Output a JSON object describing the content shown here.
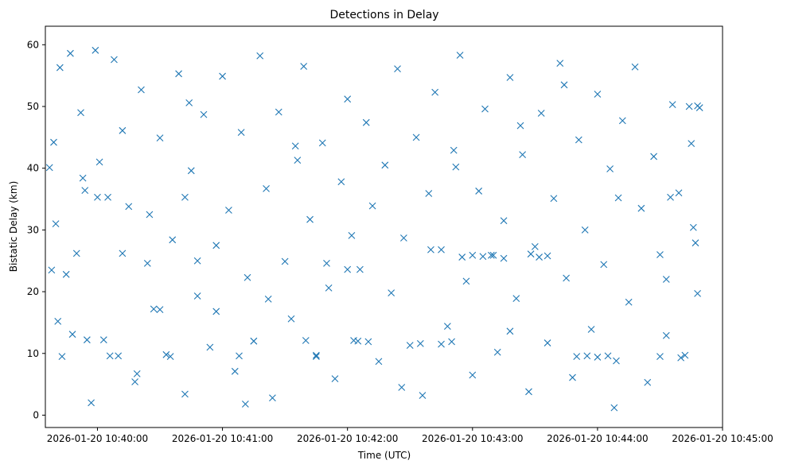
{
  "chart_data": {
    "type": "scatter",
    "title": "Detections in Delay",
    "xlabel": "Time (UTC)",
    "ylabel": "Bistatic Delay (km)",
    "xlim": [
      "2026-01-20 10:39:35",
      "2026-01-20 10:45:00"
    ],
    "ylim": [
      -2,
      63
    ],
    "grid": false,
    "x_ticks": [
      "2026-01-20 10:40:00",
      "2026-01-20 10:41:00",
      "2026-01-20 10:42:00",
      "2026-01-20 10:43:00",
      "2026-01-20 10:44:00",
      "2026-01-20 10:45:00"
    ],
    "y_ticks": [
      0,
      10,
      20,
      30,
      40,
      50,
      60
    ],
    "marker": "x",
    "color": "#1f77b4",
    "x": [
      "2026-01-20 10:39:37",
      "2026-01-20 10:39:38",
      "2026-01-20 10:39:39",
      "2026-01-20 10:39:40",
      "2026-01-20 10:39:42",
      "2026-01-20 10:39:43",
      "2026-01-20 10:39:45",
      "2026-01-20 10:39:47",
      "2026-01-20 10:39:48",
      "2026-01-20 10:39:50",
      "2026-01-20 10:39:52",
      "2026-01-20 10:39:54",
      "2026-01-20 10:39:57",
      "2026-01-20 10:39:59",
      "2026-01-20 10:40:01",
      "2026-01-20 10:40:03",
      "2026-01-20 10:40:05",
      "2026-01-20 10:40:08",
      "2026-01-20 10:40:10",
      "2026-01-20 10:40:12",
      "2026-01-20 10:40:15",
      "2026-01-20 10:40:18",
      "2026-01-20 10:40:21",
      "2026-01-20 10:40:24",
      "2026-01-20 10:40:27",
      "2026-01-20 10:40:30",
      "2026-01-20 10:40:33",
      "2026-01-20 10:40:36",
      "2026-01-20 10:40:39",
      "2026-01-20 10:40:42",
      "2026-01-20 10:40:45",
      "2026-01-20 10:40:48",
      "2026-01-20 10:40:51",
      "2026-01-20 10:40:54",
      "2026-01-20 10:40:57",
      "2026-01-20 10:41:00",
      "2026-01-20 10:41:03",
      "2026-01-20 10:41:06",
      "2026-01-20 10:41:09",
      "2026-01-20 10:41:12",
      "2026-01-20 10:41:15",
      "2026-01-20 10:41:18",
      "2026-01-20 10:41:21",
      "2026-01-20 10:41:24",
      "2026-01-20 10:41:27",
      "2026-01-20 10:41:30",
      "2026-01-20 10:41:33",
      "2026-01-20 10:41:36",
      "2026-01-20 10:41:39",
      "2026-01-20 10:41:42",
      "2026-01-20 10:41:45",
      "2026-01-20 10:41:48",
      "2026-01-20 10:41:51",
      "2026-01-20 10:41:54",
      "2026-01-20 10:41:57",
      "2026-01-20 10:42:00",
      "2026-01-20 10:42:03",
      "2026-01-20 10:42:06",
      "2026-01-20 10:42:09",
      "2026-01-20 10:42:12",
      "2026-01-20 10:42:15",
      "2026-01-20 10:42:18",
      "2026-01-20 10:42:21",
      "2026-01-20 10:42:24",
      "2026-01-20 10:42:27",
      "2026-01-20 10:42:30",
      "2026-01-20 10:42:33",
      "2026-01-20 10:42:36",
      "2026-01-20 10:42:39",
      "2026-01-20 10:42:42",
      "2026-01-20 10:42:45",
      "2026-01-20 10:42:48",
      "2026-01-20 10:42:51",
      "2026-01-20 10:42:54",
      "2026-01-20 10:42:57",
      "2026-01-20 10:43:00",
      "2026-01-20 10:43:03",
      "2026-01-20 10:43:06",
      "2026-01-20 10:43:09",
      "2026-01-20 10:43:12",
      "2026-01-20 10:43:15",
      "2026-01-20 10:43:18",
      "2026-01-20 10:43:21",
      "2026-01-20 10:43:24",
      "2026-01-20 10:43:27",
      "2026-01-20 10:43:30",
      "2026-01-20 10:43:33",
      "2026-01-20 10:43:36",
      "2026-01-20 10:43:39",
      "2026-01-20 10:43:42",
      "2026-01-20 10:43:45",
      "2026-01-20 10:43:48",
      "2026-01-20 10:43:51",
      "2026-01-20 10:43:54",
      "2026-01-20 10:43:57",
      "2026-01-20 10:44:00",
      "2026-01-20 10:44:03",
      "2026-01-20 10:44:06",
      "2026-01-20 10:44:09",
      "2026-01-20 10:44:12",
      "2026-01-20 10:44:15",
      "2026-01-20 10:44:18",
      "2026-01-20 10:44:21",
      "2026-01-20 10:44:24",
      "2026-01-20 10:44:27",
      "2026-01-20 10:44:30",
      "2026-01-20 10:44:33",
      "2026-01-20 10:44:36",
      "2026-01-20 10:44:39",
      "2026-01-20 10:44:42",
      "2026-01-20 10:44:45",
      "2026-01-20 10:44:47",
      "2026-01-20 10:44:48",
      "2026-01-20 10:44:49",
      "2026-01-20 10:39:55",
      "2026-01-20 10:40:00",
      "2026-01-20 10:40:06",
      "2026-01-20 10:40:12",
      "2026-01-20 10:40:25",
      "2026-01-20 10:40:30",
      "2026-01-20 10:40:35",
      "2026-01-20 10:40:42",
      "2026-01-20 10:40:48",
      "2026-01-20 10:41:08",
      "2026-01-20 10:41:15",
      "2026-01-20 10:41:22",
      "2026-01-20 10:41:40",
      "2026-01-20 10:41:45",
      "2026-01-20 10:41:50",
      "2026-01-20 10:42:00",
      "2026-01-20 10:42:05",
      "2026-01-20 10:42:10",
      "2026-01-20 10:42:35",
      "2026-01-20 10:42:40",
      "2026-01-20 10:42:45",
      "2026-01-20 10:42:50",
      "2026-01-20 10:42:55",
      "2026-01-20 10:43:00",
      "2026-01-20 10:43:05",
      "2026-01-20 10:43:10",
      "2026-01-20 10:43:15",
      "2026-01-20 10:43:28",
      "2026-01-20 10:43:32",
      "2026-01-20 10:43:36",
      "2026-01-20 10:43:50",
      "2026-01-20 10:43:55",
      "2026-01-20 10:44:00",
      "2026-01-20 10:44:05",
      "2026-01-20 10:44:10",
      "2026-01-20 10:44:30",
      "2026-01-20 10:44:35",
      "2026-01-20 10:44:40",
      "2026-01-20 10:44:44",
      "2026-01-20 10:44:48",
      "2026-01-20 10:39:41",
      "2026-01-20 10:39:53",
      "2026-01-20 10:40:19",
      "2026-01-20 10:40:44",
      "2026-01-20 10:41:11",
      "2026-01-20 10:41:35",
      "2026-01-20 10:42:02",
      "2026-01-20 10:42:26",
      "2026-01-20 10:42:52",
      "2026-01-20 10:43:18",
      "2026-01-20 10:43:44",
      "2026-01-20 10:44:08",
      "2026-01-20 10:44:33",
      "2026-01-20 10:44:46",
      "2026-01-20 10:40:57",
      "2026-01-20 10:43:23"
    ],
    "y": [
      40.1,
      23.5,
      44.2,
      31.0,
      56.3,
      9.5,
      22.8,
      58.6,
      13.1,
      26.2,
      49.0,
      36.4,
      2.0,
      59.1,
      41.0,
      12.2,
      35.3,
      57.6,
      9.6,
      46.1,
      33.8,
      5.4,
      52.7,
      24.6,
      17.2,
      44.9,
      9.8,
      28.4,
      55.3,
      3.4,
      39.6,
      19.3,
      48.7,
      11.0,
      27.5,
      54.9,
      33.2,
      7.1,
      45.8,
      22.3,
      12.0,
      58.2,
      36.7,
      2.8,
      49.1,
      24.9,
      15.6,
      41.3,
      56.5,
      31.7,
      9.5,
      44.1,
      20.6,
      5.9,
      37.8,
      51.2,
      12.1,
      23.6,
      47.4,
      33.9,
      8.7,
      40.5,
      19.8,
      56.1,
      28.7,
      11.3,
      45.0,
      3.2,
      35.9,
      52.3,
      26.8,
      14.4,
      42.9,
      58.3,
      21.7,
      6.5,
      36.3,
      49.6,
      25.9,
      10.2,
      31.5,
      54.7,
      18.9,
      42.2,
      3.8,
      27.3,
      48.9,
      11.7,
      35.1,
      57.0,
      22.2,
      6.1,
      44.6,
      30.0,
      13.9,
      52.0,
      24.4,
      39.9,
      8.8,
      47.7,
      18.3,
      56.4,
      33.5,
      5.3,
      41.9,
      26.0,
      12.9,
      50.3,
      36.0,
      9.7,
      44.0,
      27.9,
      19.7,
      49.8,
      12.2,
      35.3,
      9.6,
      26.2,
      32.5,
      17.1,
      9.5,
      35.3,
      25.0,
      9.6,
      12.0,
      18.8,
      12.1,
      9.7,
      24.6,
      23.6,
      12.0,
      11.9,
      11.6,
      26.8,
      11.5,
      11.9,
      25.6,
      25.9,
      25.7,
      25.9,
      25.4,
      26.1,
      25.6,
      25.8,
      9.5,
      9.6,
      9.4,
      9.6,
      35.2,
      9.5,
      35.3,
      9.3,
      50.0,
      50.1,
      15.2,
      38.4,
      6.7,
      50.6,
      1.8,
      43.6,
      29.1,
      4.5,
      40.2,
      13.6,
      53.5,
      1.2,
      22.0,
      30.4,
      16.8,
      46.9
    ]
  }
}
